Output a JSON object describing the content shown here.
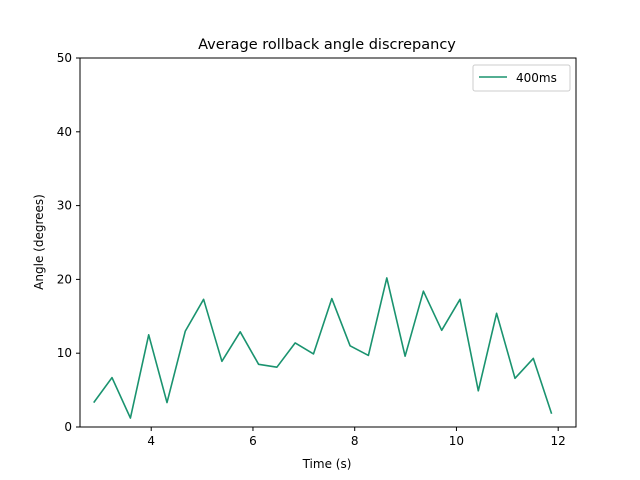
{
  "chart_data": {
    "type": "line",
    "title": "Average rollback angle discrepancy",
    "xlabel": "Time (s)",
    "ylabel": "Angle (degrees)",
    "xlim": [
      2.6,
      12.35
    ],
    "ylim": [
      0,
      50
    ],
    "xticks": [
      4,
      6,
      8,
      10,
      12
    ],
    "yticks": [
      0,
      10,
      20,
      30,
      40,
      50
    ],
    "grid": false,
    "legend_position": "top-right",
    "series": [
      {
        "name": "400ms",
        "color": "#1a936f",
        "x": [
          2.87,
          3.23,
          3.59,
          3.95,
          4.31,
          4.67,
          5.03,
          5.39,
          5.75,
          6.11,
          6.47,
          6.83,
          7.19,
          7.55,
          7.91,
          8.27,
          8.63,
          8.99,
          9.35,
          9.71,
          10.07,
          10.43,
          10.79,
          11.15,
          11.51,
          11.87
        ],
        "y": [
          3.3,
          6.7,
          1.2,
          12.5,
          3.3,
          13.0,
          17.3,
          8.9,
          12.9,
          8.5,
          8.1,
          11.4,
          9.9,
          17.4,
          11.0,
          9.7,
          20.2,
          9.6,
          18.4,
          13.1,
          17.3,
          4.9,
          15.4,
          6.6,
          9.3,
          1.8
        ]
      }
    ]
  }
}
